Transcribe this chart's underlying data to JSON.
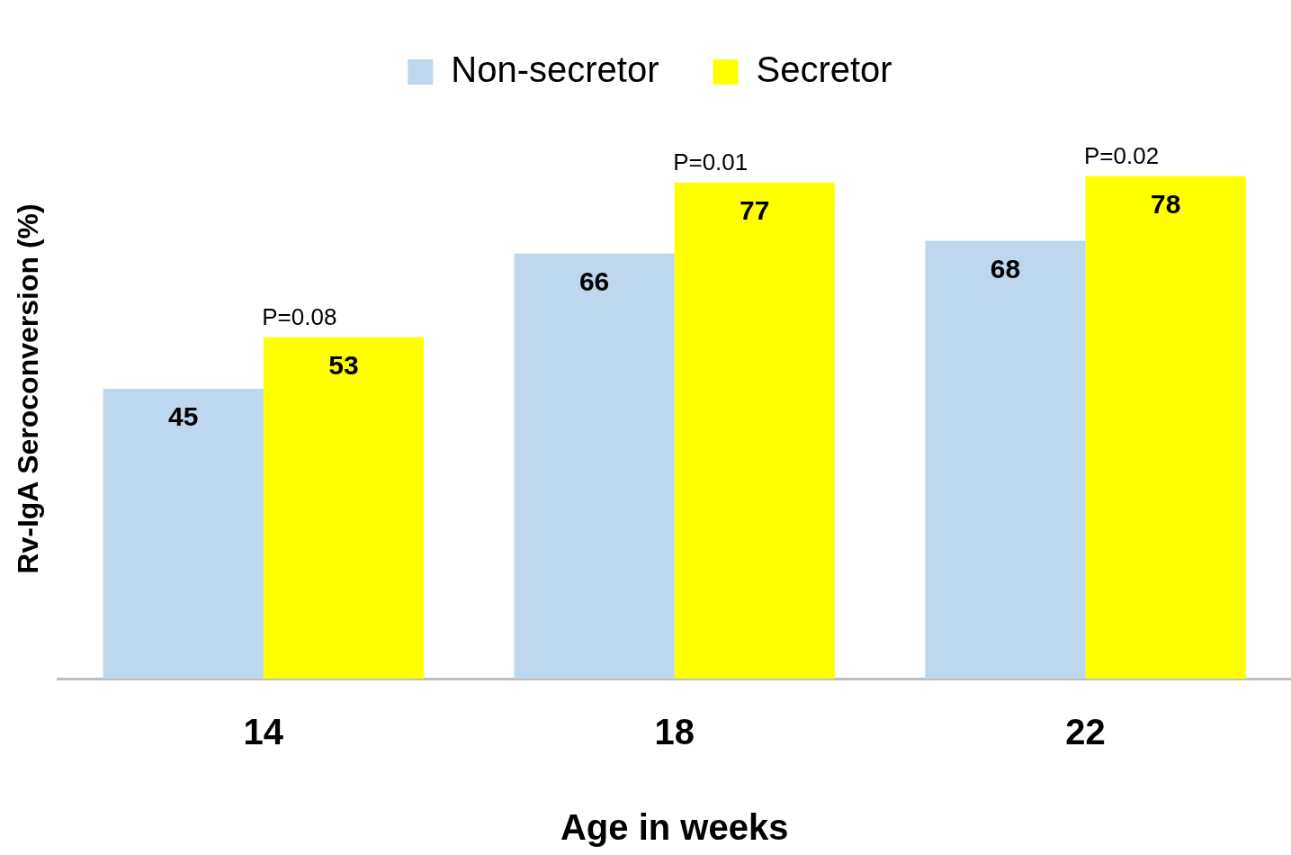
{
  "chart_data": {
    "type": "bar",
    "xlabel": "Age in weeks",
    "ylabel": "Rv-IgA Seroconversion (%)",
    "categories": [
      "14",
      "18",
      "22"
    ],
    "series": [
      {
        "name": "Non-secretor",
        "color": "#bdd7ee",
        "values": [
          45,
          66,
          68
        ]
      },
      {
        "name": "Secretor",
        "color": "#ffff00",
        "values": [
          53,
          77,
          78
        ]
      }
    ],
    "data_labels": true,
    "legend": "top",
    "tick_labels": "x",
    "annotations": [
      "P=0.08",
      "P=0.01",
      "P=0.02"
    ]
  }
}
